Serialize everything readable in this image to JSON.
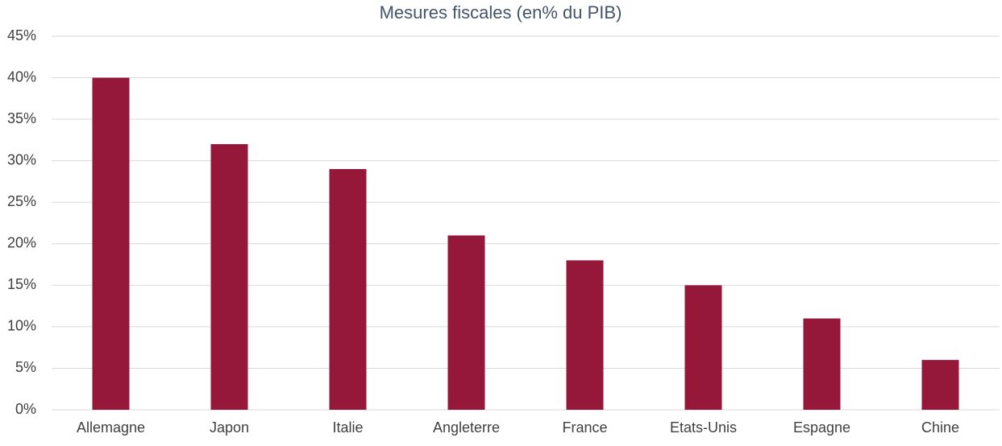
{
  "chart_data": {
    "type": "bar",
    "title": "Mesures fiscales (en% du PIB)",
    "categories": [
      "Allemagne",
      "Japon",
      "Italie",
      "Angleterre",
      "France",
      "Etats-Unis",
      "Espagne",
      "Chine"
    ],
    "values": [
      40,
      32,
      29,
      21,
      18,
      15,
      11,
      6
    ],
    "color": "#95173a",
    "ylim": [
      0,
      45
    ],
    "yticks": [
      {
        "value": 0,
        "label": "0%"
      },
      {
        "value": 5,
        "label": "5%"
      },
      {
        "value": 10,
        "label": "10%"
      },
      {
        "value": 15,
        "label": "15%"
      },
      {
        "value": 20,
        "label": "20%"
      },
      {
        "value": 25,
        "label": "25%"
      },
      {
        "value": 30,
        "label": "30%"
      },
      {
        "value": 35,
        "label": "35%"
      },
      {
        "value": 40,
        "label": "40%"
      },
      {
        "value": 45,
        "label": "45%"
      }
    ],
    "grid": true
  }
}
